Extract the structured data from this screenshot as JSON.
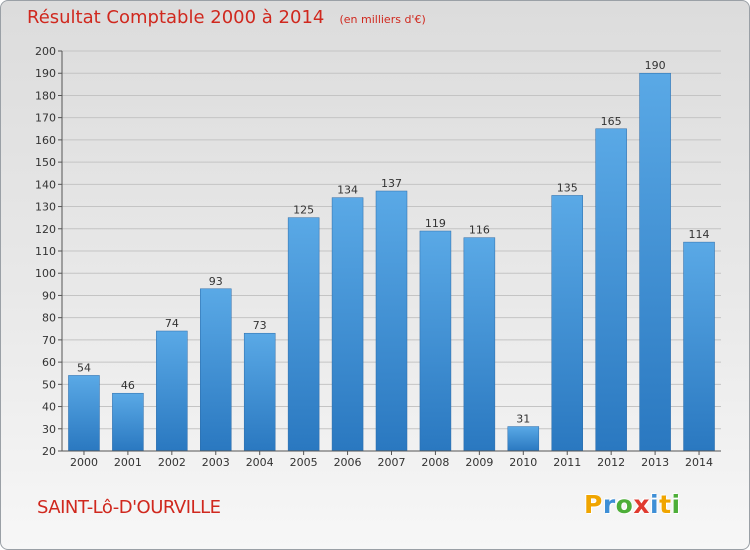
{
  "chart_data": {
    "type": "bar",
    "title": "Résultat Comptable 2000 à 2014",
    "subtitle": "(en milliers d'€)",
    "categories": [
      "2000",
      "2001",
      "2002",
      "2003",
      "2004",
      "2005",
      "2006",
      "2007",
      "2008",
      "2009",
      "2010",
      "2011",
      "2012",
      "2013",
      "2014"
    ],
    "values": [
      54,
      46,
      74,
      93,
      73,
      125,
      134,
      137,
      119,
      116,
      31,
      135,
      165,
      190,
      114
    ],
    "ylim": [
      20,
      200
    ],
    "yticks": [
      20,
      30,
      40,
      50,
      60,
      70,
      80,
      90,
      100,
      110,
      120,
      130,
      140,
      150,
      160,
      170,
      180,
      190,
      200
    ],
    "grid": true,
    "bar_color_light": "#5aa9e6",
    "bar_color_dark": "#2a78c0"
  },
  "footer": {
    "commune": "SAINT-Lô-D'OURVILLE",
    "logo": [
      {
        "ch": "P",
        "color": "#f0a500"
      },
      {
        "ch": "r",
        "color": "#3e8fd6"
      },
      {
        "ch": "o",
        "color": "#4dae38"
      },
      {
        "ch": "x",
        "color": "#e03a2f"
      },
      {
        "ch": "i",
        "color": "#3e8fd6"
      },
      {
        "ch": "t",
        "color": "#f0a500"
      },
      {
        "ch": "i",
        "color": "#4dae38"
      }
    ]
  },
  "colors": {
    "title": "#d0281e"
  }
}
